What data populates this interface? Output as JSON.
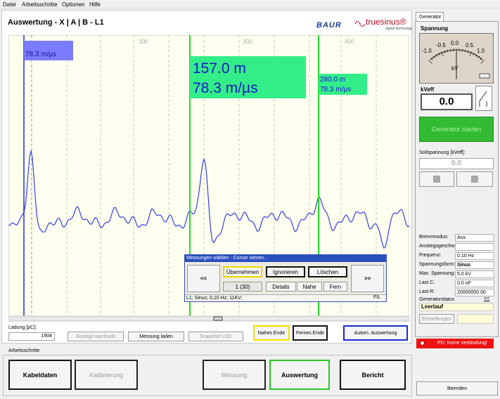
{
  "menu": [
    "Datei",
    "Arbeitsschritte",
    "Optionen",
    "Hilfe"
  ],
  "header": {
    "title": "Auswertung - X | A | B - L1",
    "logo_baur": "BAUR",
    "logo_truesinus": "truesinus®",
    "logo_tagline": "digital technology"
  },
  "plot": {
    "axis_labels": [
      "300",
      "300",
      "400"
    ],
    "cursors": [
      {
        "label_lines": [
          "78.3 m/µs"
        ]
      },
      {
        "label_lines": [
          "157.0 m",
          "78.3 m/µs"
        ]
      },
      {
        "label_lines": [
          "280.0 m",
          "78.3 m/µs"
        ]
      }
    ]
  },
  "dialog": {
    "title": "Messungen wählen - Cursor setzen...",
    "prev": "<<",
    "next": ">>",
    "accept": "Übernehmen",
    "ignore": "Ignorieren",
    "delete": "Löschen",
    "counter": "1 (30)",
    "details": "Details",
    "near": "Nahe",
    "far": "Fern",
    "status": "L1; Sinus; 0,10 Hz; 11KV;",
    "status_right": "FIL"
  },
  "controls": {
    "charge_label": "Ladung [pC]:",
    "charge_value": "1904",
    "toggle_view": "Anzeige wechseln",
    "load": "Messung laden",
    "snapshot": "Snapshot LOC",
    "near_end": "Nahes Ende",
    "far_end": "Fernes Ende",
    "auto": "Autom. Auswertung"
  },
  "steps": {
    "group_label": "Arbeitsschritte",
    "items": [
      "Kabeldaten",
      "Kalibrierung",
      "Messung",
      "Auswertung",
      "Bericht"
    ]
  },
  "generator": {
    "tab": "Generator",
    "voltage_label": "Spannung",
    "scale": [
      "-1.0",
      "-0.5",
      "0.0",
      "0.5",
      "1.0"
    ],
    "unit": "kV",
    "kveff_label": "kVeff",
    "kveff_value": "0.0",
    "start": "Generator starten",
    "setpoint_label": "Sollspannung [kVeff]:",
    "setpoint_value": "0.0",
    "info": [
      [
        "Brennmodus:",
        "Aus"
      ],
      [
        "Anstiegsgeschw:",
        ""
      ],
      [
        "Frequenz:",
        "0.10 Hz"
      ],
      [
        "Spannungsform:",
        "Sinus"
      ],
      [
        "Max. Spannung:",
        "5.0 kV"
      ],
      [
        "Last C:",
        "0.0 nF"
      ],
      [
        "Last R:",
        "20000000.00"
      ]
    ],
    "status_label": "Generatorstatus",
    "status_toggle": "<<",
    "status_value": "Leerlauf",
    "settings": "Einstellungen"
  },
  "pd_status": "PD: Keine Verbindung!",
  "exit": "Beenden"
}
